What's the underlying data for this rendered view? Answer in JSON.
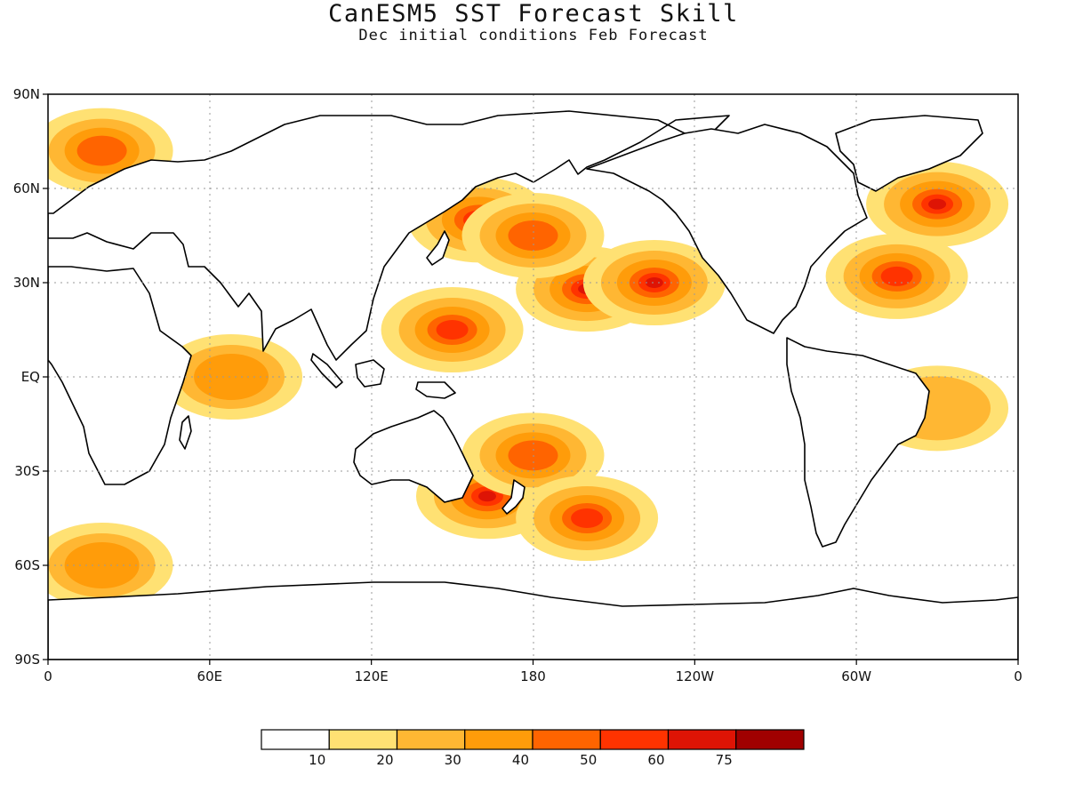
{
  "title": "CanESM5 SST Forecast Skill",
  "subtitle": "Dec initial conditions  Feb Forecast",
  "map": {
    "projection": "equirectangular",
    "lon_range": [
      0,
      360
    ],
    "lat_range": [
      -90,
      90
    ],
    "grid": "dotted",
    "x_ticks": [
      {
        "lon": 0,
        "label": "0"
      },
      {
        "lon": 60,
        "label": "60E"
      },
      {
        "lon": 120,
        "label": "120E"
      },
      {
        "lon": 180,
        "label": "180"
      },
      {
        "lon": 240,
        "label": "120W"
      },
      {
        "lon": 300,
        "label": "60W"
      },
      {
        "lon": 360,
        "label": "0"
      }
    ],
    "y_ticks": [
      {
        "lat": 90,
        "label": "90N"
      },
      {
        "lat": 60,
        "label": "60N"
      },
      {
        "lat": 30,
        "label": "30N"
      },
      {
        "lat": 0,
        "label": "EQ"
      },
      {
        "lat": -30,
        "label": "30S"
      },
      {
        "lat": -60,
        "label": "60S"
      },
      {
        "lat": -90,
        "label": "90S"
      }
    ]
  },
  "colorbar": {
    "colors": [
      "#ffffff",
      "#ffe173",
      "#ffb733",
      "#ff9c0a",
      "#ff6400",
      "#ff3300",
      "#de1405",
      "#a00000"
    ],
    "labels": [
      "10",
      "20",
      "30",
      "40",
      "50",
      "60",
      "75"
    ]
  },
  "chart_data": {
    "type": "heatmap",
    "title": "CanESM5 SST Forecast Skill",
    "subtitle": "Dec initial conditions  Feb Forecast",
    "legend_levels": [
      10,
      20,
      30,
      40,
      50,
      60,
      75
    ],
    "regions": [
      {
        "lon": 200,
        "lat": 28,
        "value": 60
      },
      {
        "lon": 225,
        "lat": 30,
        "value": 60
      },
      {
        "lon": 160,
        "lat": 50,
        "value": 60
      },
      {
        "lon": 150,
        "lat": 15,
        "value": 50
      },
      {
        "lon": 180,
        "lat": 45,
        "value": 40
      },
      {
        "lon": 330,
        "lat": 55,
        "value": 60
      },
      {
        "lon": 315,
        "lat": 32,
        "value": 50
      },
      {
        "lon": 163,
        "lat": -38,
        "value": 60
      },
      {
        "lon": 180,
        "lat": -25,
        "value": 40
      },
      {
        "lon": 200,
        "lat": -45,
        "value": 50
      },
      {
        "lon": 20,
        "lat": 72,
        "value": 40
      },
      {
        "lon": 20,
        "lat": -60,
        "value": 30
      },
      {
        "lon": 68,
        "lat": 0,
        "value": 30
      },
      {
        "lon": 330,
        "lat": -10,
        "value": 20
      }
    ]
  }
}
